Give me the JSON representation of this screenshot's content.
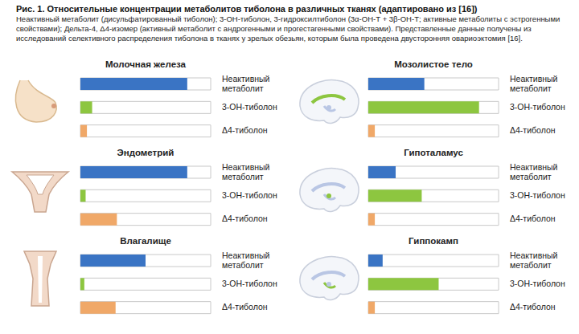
{
  "title": "Рис. 1. Относительные концентрации метаболитов тиболона в различных тканях (адаптировано из [16])",
  "caption": "Неактивный метаболит (дисульфатированный тиболон); 3-ОН-тиболон, 3-гидроксилтиболон (3α-ОН-Т + 3β-ОН-Т; активные метаболиты с эстрогенными свойствами); Дельта-4, Δ4-изомер (активный метаболит с андрогенными и прогестагенными свойствами). Представленные данные получены из исследований селективного распределения тиболона в тканях у зрелых обезьян, которым была проведена двусторонняя овариоэктомия [16].",
  "chart_data": [
    {
      "type": "bar",
      "orientation": "horizontal",
      "title": "Молочная железа",
      "categories": [
        "Неактивный метаболит",
        "3-ОН-тиболон",
        "Δ4-тиболон"
      ],
      "values": [
        82,
        9,
        5
      ],
      "colors": [
        "#3a74c4",
        "#8dc640",
        "#f0a868"
      ],
      "xlim": [
        0,
        100
      ],
      "tick_labels": false
    },
    {
      "type": "bar",
      "orientation": "horizontal",
      "title": "Мозолистое тело",
      "categories": [
        "Неактивный метаболит",
        "3-ОН-тиболон",
        "Δ4-тиболон"
      ],
      "values": [
        43,
        85,
        5
      ],
      "colors": [
        "#3a74c4",
        "#8dc640",
        "#f0a868"
      ],
      "xlim": [
        0,
        100
      ],
      "tick_labels": false
    },
    {
      "type": "bar",
      "orientation": "horizontal",
      "title": "Эндометрий",
      "categories": [
        "Неактивный метаболит",
        "3-ОН-тиболон",
        "Δ4-тиболон"
      ],
      "values": [
        82,
        4,
        28
      ],
      "colors": [
        "#3a74c4",
        "#8dc640",
        "#f0a868"
      ],
      "xlim": [
        0,
        100
      ],
      "tick_labels": false
    },
    {
      "type": "bar",
      "orientation": "horizontal",
      "title": "Гипоталамус",
      "categories": [
        "Неактивный метаболит",
        "3-ОН-тиболон",
        "Δ4-тиболон"
      ],
      "values": [
        21,
        41,
        5
      ],
      "colors": [
        "#3a74c4",
        "#8dc640",
        "#f0a868"
      ],
      "xlim": [
        0,
        100
      ],
      "tick_labels": false
    },
    {
      "type": "bar",
      "orientation": "horizontal",
      "title": "Влагалище",
      "categories": [
        "Неактивный метаболит",
        "3-ОН-тиболон",
        "Δ4-тиболон"
      ],
      "values": [
        50,
        3,
        27
      ],
      "colors": [
        "#3a74c4",
        "#8dc640",
        "#f0a868"
      ],
      "xlim": [
        0,
        100
      ],
      "tick_labels": false
    },
    {
      "type": "bar",
      "orientation": "horizontal",
      "title": "Гиппокамп",
      "categories": [
        "Неактивный метаболит",
        "3-ОН-тиболон",
        "Δ4-тиболон"
      ],
      "values": [
        11,
        54,
        5
      ],
      "colors": [
        "#3a74c4",
        "#8dc640",
        "#f0a868"
      ],
      "xlim": [
        0,
        100
      ],
      "tick_labels": false
    }
  ]
}
